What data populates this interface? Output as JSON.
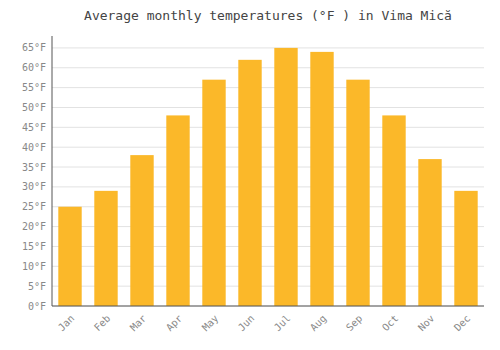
{
  "chart_data": {
    "type": "bar",
    "title": "Average monthly temperatures (°F ) in Vima Mică",
    "categories": [
      "Jan",
      "Feb",
      "Mar",
      "Apr",
      "May",
      "Jun",
      "Jul",
      "Aug",
      "Sep",
      "Oct",
      "Nov",
      "Dec"
    ],
    "values": [
      25,
      29,
      38,
      48,
      57,
      62,
      65,
      64,
      57,
      48,
      37,
      29
    ],
    "color": "#FBB829",
    "ylim": [
      0,
      68
    ],
    "yticks": [
      {
        "value": 0,
        "label": "0°F"
      },
      {
        "value": 5,
        "label": "5°F"
      },
      {
        "value": 10,
        "label": "10°F"
      },
      {
        "value": 15,
        "label": "15°F"
      },
      {
        "value": 20,
        "label": "20°F"
      },
      {
        "value": 25,
        "label": "25°F"
      },
      {
        "value": 30,
        "label": "30°F"
      },
      {
        "value": 35,
        "label": "35°F"
      },
      {
        "value": 40,
        "label": "40°F"
      },
      {
        "value": 45,
        "label": "45°F"
      },
      {
        "value": 50,
        "label": "50°F"
      },
      {
        "value": 55,
        "label": "55°F"
      },
      {
        "value": 60,
        "label": "60°F"
      },
      {
        "value": 65,
        "label": "65°F"
      }
    ],
    "grid": true
  }
}
